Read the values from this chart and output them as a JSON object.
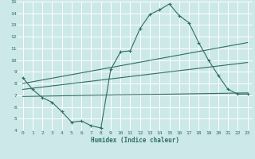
{
  "xlabel": "Humidex (Indice chaleur)",
  "background_color": "#cce8e8",
  "line_color": "#2d6e63",
  "grid_color": "#ffffff",
  "xlim": [
    -0.5,
    23.5
  ],
  "ylim": [
    4,
    15
  ],
  "xticks": [
    0,
    1,
    2,
    3,
    4,
    5,
    6,
    7,
    8,
    9,
    10,
    11,
    12,
    13,
    14,
    15,
    16,
    17,
    18,
    19,
    20,
    21,
    22,
    23
  ],
  "yticks": [
    4,
    5,
    6,
    7,
    8,
    9,
    10,
    11,
    12,
    13,
    14,
    15
  ],
  "line1": {
    "x": [
      0,
      1,
      2,
      3,
      4,
      5,
      6,
      7,
      8,
      9,
      10,
      11,
      12,
      13,
      14,
      15,
      16,
      17,
      18,
      19,
      20,
      21,
      22,
      23
    ],
    "y": [
      8.5,
      7.5,
      6.8,
      6.4,
      5.6,
      4.7,
      4.8,
      4.4,
      4.2,
      9.2,
      10.7,
      10.8,
      12.7,
      13.9,
      14.3,
      14.8,
      13.8,
      13.2,
      11.5,
      10.0,
      8.7,
      7.5,
      7.1,
      7.1
    ]
  },
  "line2": {
    "x": [
      0,
      23
    ],
    "y": [
      8.0,
      11.5
    ]
  },
  "line3": {
    "x": [
      0,
      23
    ],
    "y": [
      7.5,
      9.8
    ]
  },
  "line4": {
    "x": [
      0,
      23
    ],
    "y": [
      6.9,
      7.2
    ]
  }
}
